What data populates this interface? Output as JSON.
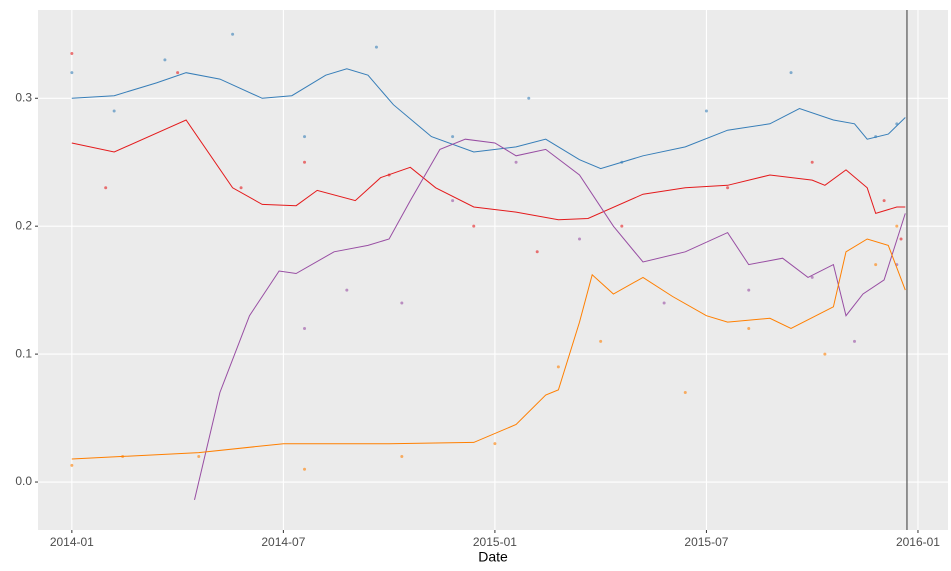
{
  "chart_data": {
    "type": "line",
    "xlabel": "Date",
    "xlim": [
      2013.92,
      2016.071
    ],
    "ylim": [
      -0.0375,
      0.369
    ],
    "xticks": [
      {
        "value": 2014,
        "label": "2014-01"
      },
      {
        "value": 2014.5,
        "label": "2014-07"
      },
      {
        "value": 2015,
        "label": "2015-01"
      },
      {
        "value": 2015.5,
        "label": "2015-07"
      },
      {
        "value": 2016,
        "label": "2016-01"
      }
    ],
    "yticks": [
      {
        "value": 0,
        "label": "0.0"
      },
      {
        "value": 0.1,
        "label": "0.1"
      },
      {
        "value": 0.2,
        "label": "0.2"
      },
      {
        "value": 0.3,
        "label": "0.3"
      }
    ],
    "grid": true,
    "vline_x": 2015.974,
    "series": [
      {
        "color": "#377eb8",
        "x": [
          2014.0,
          2014.1,
          2014.2,
          2014.27,
          2014.35,
          2014.45,
          2014.52,
          2014.6,
          2014.65,
          2014.7,
          2014.76,
          2014.85,
          2014.95,
          2015.05,
          2015.12,
          2015.2,
          2015.25,
          2015.35,
          2015.45,
          2015.55,
          2015.65,
          2015.72,
          2015.8,
          2015.85,
          2015.88,
          2015.93,
          2015.97
        ],
        "values": [
          0.3,
          0.302,
          0.312,
          0.32,
          0.315,
          0.3,
          0.302,
          0.318,
          0.323,
          0.318,
          0.295,
          0.27,
          0.258,
          0.262,
          0.268,
          0.252,
          0.245,
          0.255,
          0.262,
          0.275,
          0.28,
          0.292,
          0.283,
          0.28,
          0.268,
          0.272,
          0.285
        ]
      },
      {
        "color": "#e41a1c",
        "x": [
          2014.0,
          2014.1,
          2014.27,
          2014.38,
          2014.45,
          2014.53,
          2014.58,
          2014.67,
          2014.73,
          2014.8,
          2014.86,
          2014.95,
          2015.05,
          2015.15,
          2015.22,
          2015.35,
          2015.45,
          2015.55,
          2015.65,
          2015.75,
          2015.78,
          2015.83,
          2015.88,
          2015.9,
          2015.95,
          2015.97
        ],
        "values": [
          0.265,
          0.258,
          0.283,
          0.23,
          0.217,
          0.216,
          0.228,
          0.22,
          0.238,
          0.246,
          0.23,
          0.215,
          0.211,
          0.205,
          0.206,
          0.225,
          0.23,
          0.232,
          0.24,
          0.236,
          0.232,
          0.244,
          0.23,
          0.21,
          0.215,
          0.215
        ]
      },
      {
        "color": "#984ea3",
        "x": [
          2014.29,
          2014.35,
          2014.42,
          2014.49,
          2014.53,
          2014.62,
          2014.7,
          2014.75,
          2014.8,
          2014.87,
          2014.93,
          2015.0,
          2015.05,
          2015.12,
          2015.2,
          2015.28,
          2015.35,
          2015.45,
          2015.55,
          2015.6,
          2015.68,
          2015.74,
          2015.8,
          2015.83,
          2015.87,
          2015.92,
          2015.97
        ],
        "values": [
          -0.014,
          0.07,
          0.13,
          0.165,
          0.163,
          0.18,
          0.185,
          0.19,
          0.22,
          0.26,
          0.268,
          0.265,
          0.255,
          0.26,
          0.24,
          0.2,
          0.172,
          0.18,
          0.195,
          0.17,
          0.175,
          0.16,
          0.17,
          0.13,
          0.147,
          0.158,
          0.21
        ]
      },
      {
        "color": "#ff7f00",
        "x": [
          2014.0,
          2014.3,
          2014.5,
          2014.75,
          2014.95,
          2015.05,
          2015.12,
          2015.15,
          2015.2,
          2015.23,
          2015.28,
          2015.35,
          2015.42,
          2015.5,
          2015.55,
          2015.65,
          2015.7,
          2015.8,
          2015.83,
          2015.88,
          2015.93,
          2015.97
        ],
        "values": [
          0.018,
          0.023,
          0.03,
          0.03,
          0.031,
          0.045,
          0.068,
          0.072,
          0.125,
          0.162,
          0.147,
          0.16,
          0.145,
          0.13,
          0.125,
          0.128,
          0.12,
          0.137,
          0.18,
          0.19,
          0.185,
          0.15
        ]
      }
    ],
    "scatter": [
      {
        "color": "#377eb8",
        "x": [
          2014.0,
          2014.1,
          2014.22,
          2014.38,
          2014.55,
          2014.72,
          2014.9,
          2015.08,
          2015.3,
          2015.5,
          2015.7,
          2015.9,
          2015.95
        ],
        "values": [
          0.32,
          0.29,
          0.33,
          0.35,
          0.27,
          0.34,
          0.27,
          0.3,
          0.25,
          0.29,
          0.32,
          0.27,
          0.28
        ]
      },
      {
        "color": "#e41a1c",
        "x": [
          2014.0,
          2014.08,
          2014.25,
          2014.4,
          2014.55,
          2014.75,
          2014.95,
          2015.1,
          2015.3,
          2015.55,
          2015.75,
          2015.92,
          2015.96
        ],
        "values": [
          0.335,
          0.23,
          0.32,
          0.23,
          0.25,
          0.24,
          0.2,
          0.18,
          0.2,
          0.23,
          0.25,
          0.22,
          0.19
        ]
      },
      {
        "color": "#984ea3",
        "x": [
          2014.55,
          2014.65,
          2014.78,
          2014.9,
          2015.05,
          2015.2,
          2015.4,
          2015.6,
          2015.75,
          2015.85,
          2015.95
        ],
        "values": [
          0.12,
          0.15,
          0.14,
          0.22,
          0.25,
          0.19,
          0.14,
          0.15,
          0.16,
          0.11,
          0.17
        ]
      },
      {
        "color": "#ff7f00",
        "x": [
          2014.0,
          2014.12,
          2014.3,
          2014.55,
          2014.78,
          2015.0,
          2015.15,
          2015.25,
          2015.45,
          2015.6,
          2015.78,
          2015.9,
          2015.95
        ],
        "values": [
          0.013,
          0.02,
          0.02,
          0.01,
          0.02,
          0.03,
          0.09,
          0.11,
          0.07,
          0.12,
          0.1,
          0.17,
          0.2
        ]
      }
    ]
  }
}
